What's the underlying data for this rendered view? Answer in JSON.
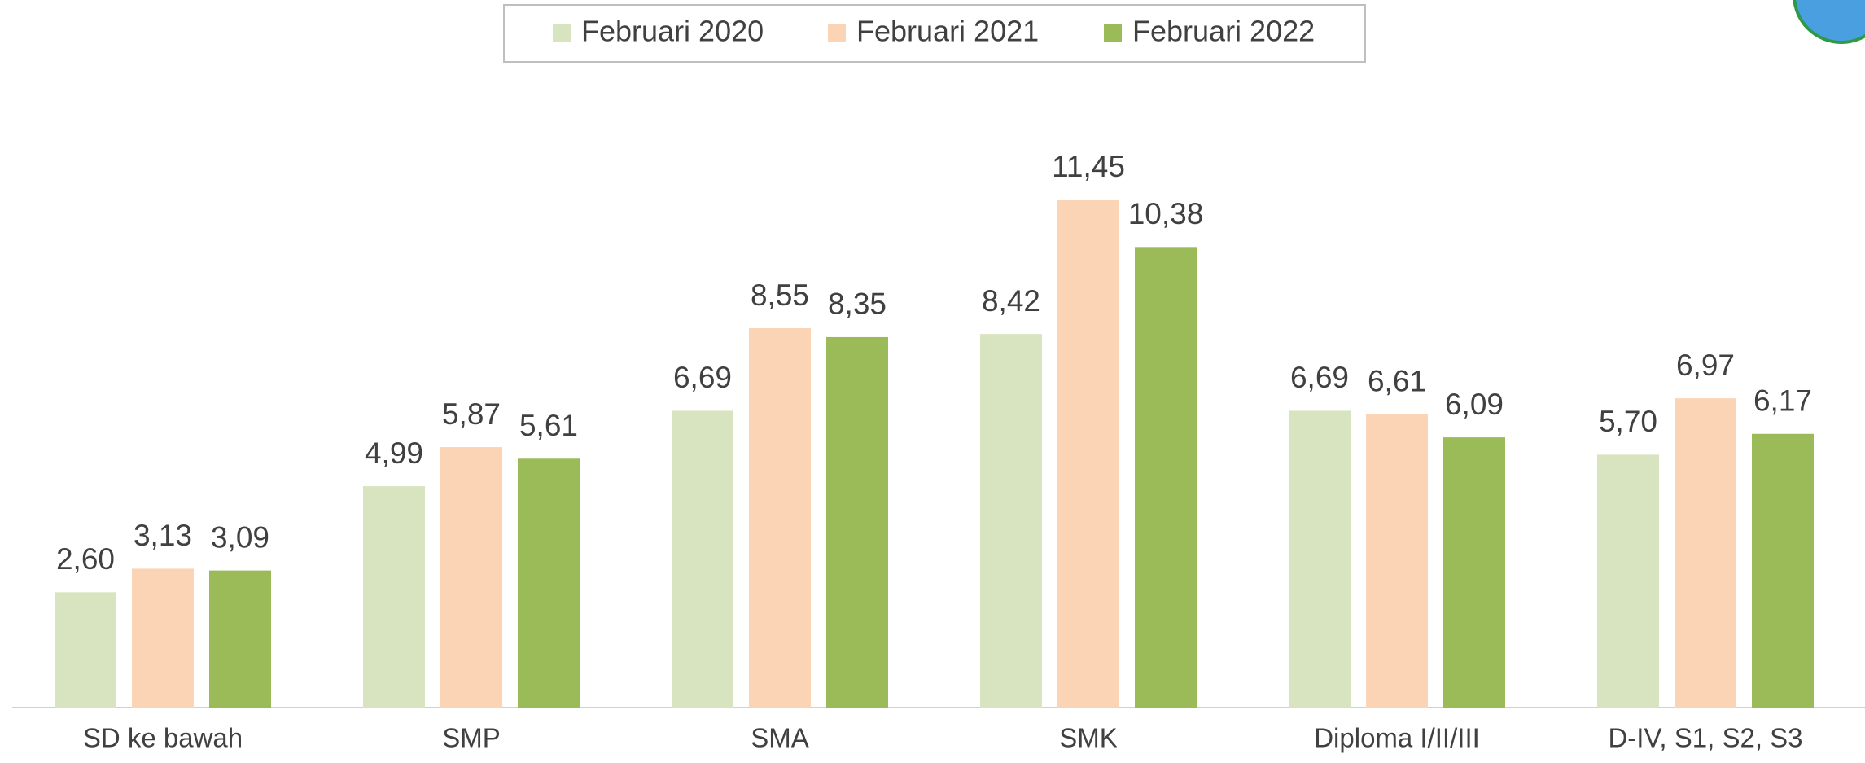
{
  "chart_data": {
    "type": "bar",
    "categories": [
      "SD ke bawah",
      "SMP",
      "SMA",
      "SMK",
      "Diploma I/II/III",
      "D-IV, S1, S2, S3"
    ],
    "series": [
      {
        "name": "Februari 2020",
        "color": "#d8e4bf",
        "values": [
          2.6,
          4.99,
          6.69,
          8.42,
          6.69,
          5.7
        ],
        "value_labels": [
          "2,60",
          "4,99",
          "6,69",
          "8,42",
          "6,69",
          "5,70"
        ]
      },
      {
        "name": "Februari 2021",
        "color": "#fbd3b5",
        "values": [
          3.13,
          5.87,
          8.55,
          11.45,
          6.61,
          6.97
        ],
        "value_labels": [
          "3,13",
          "5,87",
          "8,55",
          "11,45",
          "6,61",
          "6,97"
        ]
      },
      {
        "name": "Februari 2022",
        "color": "#9bbb59",
        "values": [
          3.09,
          5.61,
          8.35,
          10.38,
          6.09,
          6.17
        ],
        "value_labels": [
          "3,09",
          "5,61",
          "8,35",
          "10,38",
          "6,09",
          "6,17"
        ]
      }
    ],
    "legend": "top"
  }
}
